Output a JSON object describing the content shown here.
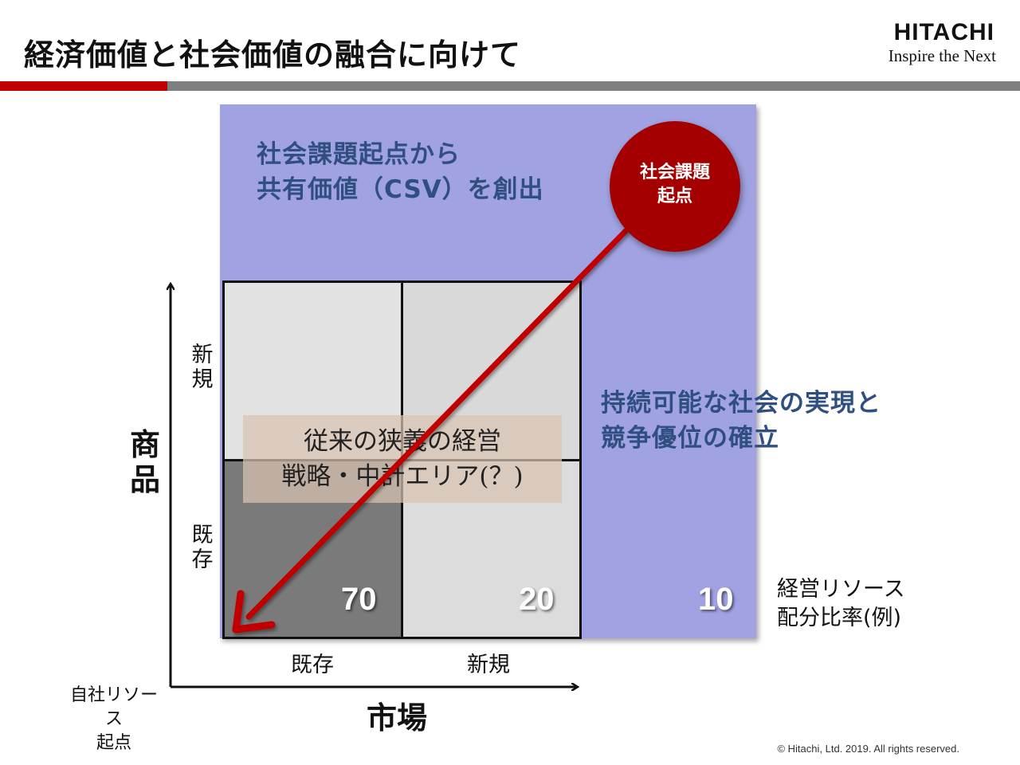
{
  "slide": {
    "title": "経済価値と社会価値の融合に向けて",
    "copyright": "© Hitachi, Ltd. 2019. All rights reserved."
  },
  "logo": {
    "main": "HITACHI",
    "sub": "Inspire the Next"
  },
  "diagram": {
    "csv_heading_line1": "社会課題起点から",
    "csv_heading_line2": "共有価値（CSV）を創出",
    "sustain_line1": "持続可能な社会の実現と",
    "sustain_line2": "競争優位の確立",
    "social_circle_line1": "社会課題",
    "social_circle_line2": "起点",
    "legacy_line1": "従来の狭義の経営",
    "legacy_line2": "戦略・中計エリア(？)",
    "y_axis_label": "商品",
    "y_tick_new": "新規",
    "y_tick_existing": "既存",
    "x_axis_label": "市場",
    "x_tick_existing": "既存",
    "x_tick_new": "新規",
    "origin_label_line1": "自社リソース",
    "origin_label_line2": "起点",
    "ratio_label_line1": "経営リソース",
    "ratio_label_line2": "配分比率(例)",
    "allocation": {
      "existing_existing": "70",
      "new_market": "20",
      "social_issue": "10"
    },
    "colors": {
      "csv_area": "#a1a2e2",
      "heading_text": "#2f4f80",
      "arrow": "#c00000",
      "circle": "#a50000",
      "title_bar_red": "#c00000",
      "title_bar_grey": "#7f7f7f"
    }
  }
}
